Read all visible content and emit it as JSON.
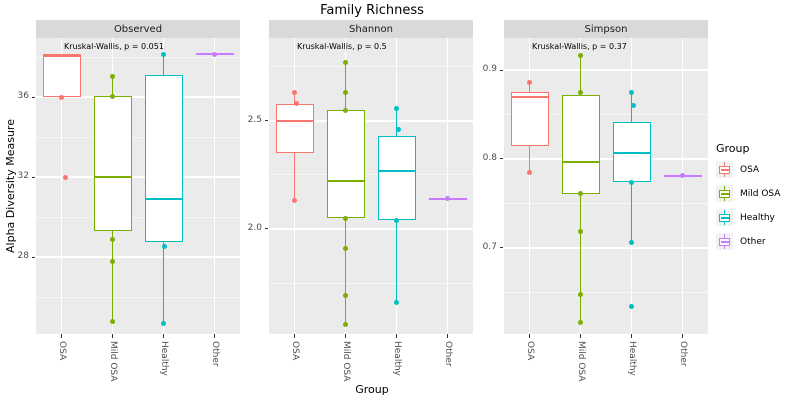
{
  "title": "Family Richness",
  "legend": {
    "title": "Group",
    "items": [
      {
        "label": "OSA",
        "color": "#F8766D"
      },
      {
        "label": "Mild OSA",
        "color": "#7CAE00"
      },
      {
        "label": "Healthy",
        "color": "#00BFC4"
      },
      {
        "label": "Other",
        "color": "#C77CFF"
      }
    ]
  },
  "colors": {
    "panel_background": "#EBEBEB",
    "strip_background": "#D9D9D9",
    "gridline": "#FFFFFF",
    "axis_text": "#4D4D4D",
    "tick_mark": "#333333"
  },
  "chart_data": {
    "type": "boxplot",
    "title": "Family Richness",
    "xlabel": "Group",
    "ylabel": "Alpha Diversity Measure",
    "groups": [
      "OSA",
      "Mild OSA",
      "Healthy",
      "Other"
    ],
    "legend_title": "Group",
    "legend_position": "right",
    "grid": true,
    "facets": [
      {
        "label": "Observed",
        "stat_label": "Kruskal-Wallis, p = 0.051",
        "ylim": [
          24.15,
          38.95
        ],
        "yticks": [
          28,
          32,
          36
        ],
        "yticks_minor": [
          26,
          30,
          34,
          38
        ],
        "decimals": 0,
        "boxes": [
          {
            "group": "OSA",
            "color": "#F8766D",
            "whisker_low": 36,
            "q1": 36,
            "median": 38.05,
            "q3": 38.15,
            "whisker_high": 38.15,
            "points": [
              [
                36,
                0
              ],
              [
                32,
                4
              ]
            ]
          },
          {
            "group": "Mild OSA",
            "color": "#7CAE00",
            "whisker_low": 24.8,
            "q1": 29.3,
            "median": 32,
            "q3": 36.05,
            "whisker_high": 37.05,
            "points": [
              [
                37.05,
                0
              ],
              [
                36.05,
                0
              ],
              [
                28.9,
                0
              ],
              [
                27.8,
                0
              ],
              [
                24.8,
                0
              ]
            ]
          },
          {
            "group": "Healthy",
            "color": "#00BFC4",
            "whisker_low": 24.7,
            "q1": 28.75,
            "median": 30.9,
            "q3": 37.1,
            "whisker_high": 38.15,
            "points": [
              [
                38.15,
                0
              ],
              [
                28.55,
                1
              ],
              [
                24.7,
                0
              ]
            ]
          },
          {
            "group": "Other",
            "color": "#C77CFF",
            "whisker_low": 38.15,
            "q1": 38.15,
            "median": 38.15,
            "q3": 38.15,
            "whisker_high": 38.15,
            "points": [
              [
                38.15,
                0
              ]
            ]
          }
        ]
      },
      {
        "label": "Shannon",
        "stat_label": "Kruskal-Wallis, p = 0.5",
        "ylim": [
          1.514,
          2.884
        ],
        "yticks": [
          2.0,
          2.5
        ],
        "yticks_minor": [
          1.75,
          2.25,
          2.75
        ],
        "decimals": 1,
        "boxes": [
          {
            "group": "OSA",
            "color": "#F8766D",
            "whisker_low": 2.13,
            "q1": 2.35,
            "median": 2.5,
            "q3": 2.58,
            "whisker_high": 2.63,
            "points": [
              [
                2.63,
                0
              ],
              [
                2.58,
                2
              ],
              [
                2.13,
                0
              ]
            ]
          },
          {
            "group": "Mild OSA",
            "color": "#7CAE00",
            "whisker_low": 1.56,
            "q1": 2.05,
            "median": 2.22,
            "q3": 2.55,
            "whisker_high": 2.77,
            "points": [
              [
                2.77,
                0
              ],
              [
                2.63,
                0
              ],
              [
                2.55,
                0
              ],
              [
                2.05,
                0
              ],
              [
                1.91,
                0
              ],
              [
                1.69,
                0
              ],
              [
                1.56,
                0
              ]
            ]
          },
          {
            "group": "Healthy",
            "color": "#00BFC4",
            "whisker_low": 1.66,
            "q1": 2.04,
            "median": 2.27,
            "q3": 2.43,
            "whisker_high": 2.56,
            "points": [
              [
                2.56,
                0
              ],
              [
                2.46,
                2
              ],
              [
                2.04,
                0
              ],
              [
                1.66,
                0
              ]
            ]
          },
          {
            "group": "Other",
            "color": "#C77CFF",
            "whisker_low": 2.14,
            "q1": 2.14,
            "median": 2.14,
            "q3": 2.14,
            "whisker_high": 2.14,
            "points": [
              [
                2.14,
                0
              ]
            ]
          }
        ]
      },
      {
        "label": "Simpson",
        "stat_label": "Kruskal-Wallis, p = 0.37",
        "ylim": [
          0.603,
          0.936
        ],
        "yticks": [
          0.7,
          0.8,
          0.9
        ],
        "yticks_minor": [
          0.65,
          0.75,
          0.85
        ],
        "decimals": 1,
        "boxes": [
          {
            "group": "OSA",
            "color": "#F8766D",
            "whisker_low": 0.785,
            "q1": 0.814,
            "median": 0.87,
            "q3": 0.875,
            "whisker_high": 0.886,
            "points": [
              [
                0.886,
                0
              ],
              [
                0.785,
                0
              ]
            ]
          },
          {
            "group": "Mild OSA",
            "color": "#7CAE00",
            "whisker_low": 0.616,
            "q1": 0.761,
            "median": 0.796,
            "q3": 0.872,
            "whisker_high": 0.916,
            "points": [
              [
                0.916,
                0
              ],
              [
                0.875,
                0
              ],
              [
                0.761,
                0
              ],
              [
                0.718,
                0
              ],
              [
                0.647,
                0
              ],
              [
                0.616,
                0
              ]
            ]
          },
          {
            "group": "Healthy",
            "color": "#00BFC4",
            "whisker_low": 0.706,
            "q1": 0.774,
            "median": 0.807,
            "q3": 0.842,
            "whisker_high": 0.875,
            "points": [
              [
                0.875,
                0
              ],
              [
                0.86,
                2
              ],
              [
                0.774,
                0
              ],
              [
                0.706,
                0
              ],
              [
                0.634,
                0
              ]
            ]
          },
          {
            "group": "Other",
            "color": "#C77CFF",
            "whisker_low": 0.781,
            "q1": 0.781,
            "median": 0.781,
            "q3": 0.781,
            "whisker_high": 0.781,
            "points": [
              [
                0.781,
                0
              ]
            ]
          }
        ]
      }
    ]
  }
}
